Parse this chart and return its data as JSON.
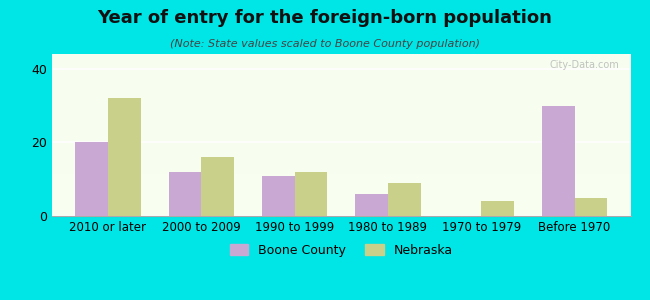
{
  "title": "Year of entry for the foreign-born population",
  "subtitle": "(Note: State values scaled to Boone County population)",
  "categories": [
    "2010 or later",
    "2000 to 2009",
    "1990 to 1999",
    "1980 to 1989",
    "1970 to 1979",
    "Before 1970"
  ],
  "boone_county": [
    20,
    12,
    11,
    6,
    0,
    30
  ],
  "nebraska": [
    32,
    16,
    12,
    9,
    4,
    5
  ],
  "boone_color": "#c9a8d4",
  "nebraska_color": "#c8d08a",
  "background_color": "#00e5e5",
  "plot_bg_start": "#f5fff0",
  "plot_bg_end": "#e8f5e0",
  "ylim": [
    0,
    44
  ],
  "yticks": [
    0,
    20,
    40
  ],
  "bar_width": 0.35,
  "legend_labels": [
    "Boone County",
    "Nebraska"
  ]
}
